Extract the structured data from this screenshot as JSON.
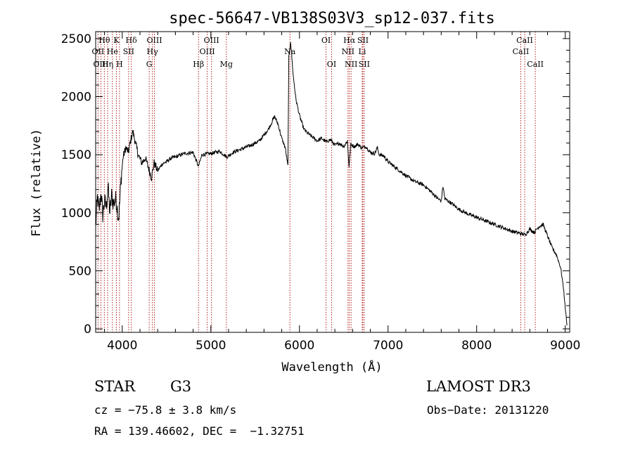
{
  "chart_data": {
    "type": "line",
    "title": "spec-56647-VB138S03V3_sp12-037.fits",
    "xlabel": "Wavelength (Å)",
    "ylabel": "Flux (relative)",
    "xlim": [
      3700,
      9050
    ],
    "ylim": [
      -30,
      2560
    ],
    "x_ticks": [
      4000,
      5000,
      6000,
      7000,
      8000,
      9000
    ],
    "y_ticks": [
      0,
      500,
      1000,
      1500,
      2000,
      2500
    ],
    "grid": false,
    "spectrum_anchors": [
      [
        3700,
        880
      ],
      [
        3720,
        1130
      ],
      [
        3740,
        1010
      ],
      [
        3760,
        1180
      ],
      [
        3780,
        980
      ],
      [
        3800,
        1100
      ],
      [
        3820,
        1050
      ],
      [
        3840,
        1230
      ],
      [
        3860,
        1000
      ],
      [
        3880,
        1150
      ],
      [
        3900,
        1080
      ],
      [
        3930,
        1120
      ],
      [
        3960,
        950
      ],
      [
        3990,
        1320
      ],
      [
        4010,
        1480
      ],
      [
        4040,
        1560
      ],
      [
        4070,
        1520
      ],
      [
        4100,
        1640
      ],
      [
        4120,
        1700
      ],
      [
        4150,
        1600
      ],
      [
        4180,
        1500
      ],
      [
        4220,
        1430
      ],
      [
        4260,
        1470
      ],
      [
        4300,
        1380
      ],
      [
        4330,
        1300
      ],
      [
        4360,
        1430
      ],
      [
        4400,
        1360
      ],
      [
        4450,
        1420
      ],
      [
        4500,
        1440
      ],
      [
        4550,
        1470
      ],
      [
        4600,
        1480
      ],
      [
        4700,
        1510
      ],
      [
        4800,
        1520
      ],
      [
        4860,
        1400
      ],
      [
        4900,
        1500
      ],
      [
        5000,
        1510
      ],
      [
        5100,
        1530
      ],
      [
        5180,
        1480
      ],
      [
        5250,
        1520
      ],
      [
        5350,
        1550
      ],
      [
        5450,
        1580
      ],
      [
        5550,
        1620
      ],
      [
        5650,
        1720
      ],
      [
        5720,
        1830
      ],
      [
        5760,
        1760
      ],
      [
        5800,
        1640
      ],
      [
        5840,
        1560
      ],
      [
        5870,
        1400
      ],
      [
        5880,
        2330
      ],
      [
        5900,
        2480
      ],
      [
        5930,
        2180
      ],
      [
        5960,
        1980
      ],
      [
        6000,
        1840
      ],
      [
        6050,
        1720
      ],
      [
        6100,
        1680
      ],
      [
        6150,
        1650
      ],
      [
        6200,
        1620
      ],
      [
        6250,
        1640
      ],
      [
        6300,
        1610
      ],
      [
        6350,
        1630
      ],
      [
        6400,
        1580
      ],
      [
        6450,
        1600
      ],
      [
        6500,
        1570
      ],
      [
        6540,
        1620
      ],
      [
        6560,
        1400
      ],
      [
        6580,
        1590
      ],
      [
        6620,
        1570
      ],
      [
        6660,
        1590
      ],
      [
        6700,
        1560
      ],
      [
        6750,
        1570
      ],
      [
        6800,
        1520
      ],
      [
        6850,
        1510
      ],
      [
        6880,
        1560
      ],
      [
        6900,
        1500
      ],
      [
        6950,
        1490
      ],
      [
        7000,
        1440
      ],
      [
        7100,
        1380
      ],
      [
        7200,
        1320
      ],
      [
        7300,
        1270
      ],
      [
        7400,
        1240
      ],
      [
        7500,
        1170
      ],
      [
        7550,
        1130
      ],
      [
        7600,
        1100
      ],
      [
        7620,
        1230
      ],
      [
        7640,
        1120
      ],
      [
        7700,
        1090
      ],
      [
        7800,
        1030
      ],
      [
        7900,
        990
      ],
      [
        8000,
        960
      ],
      [
        8100,
        930
      ],
      [
        8200,
        900
      ],
      [
        8300,
        870
      ],
      [
        8400,
        840
      ],
      [
        8500,
        820
      ],
      [
        8550,
        810
      ],
      [
        8600,
        860
      ],
      [
        8650,
        830
      ],
      [
        8700,
        880
      ],
      [
        8750,
        900
      ],
      [
        8800,
        800
      ],
      [
        8850,
        700
      ],
      [
        8900,
        640
      ],
      [
        8950,
        520
      ],
      [
        8980,
        350
      ],
      [
        9000,
        180
      ],
      [
        9020,
        30
      ]
    ],
    "lines": [
      {
        "label": "Hθ",
        "wavelength": 3798,
        "row": 1
      },
      {
        "label": "OII",
        "wavelength": 3727,
        "row": 2
      },
      {
        "label": "OIII",
        "wavelength": 3760,
        "row": 3
      },
      {
        "label": "He",
        "wavelength": 3889,
        "row": 2
      },
      {
        "label": "Hη",
        "wavelength": 3835,
        "row": 3
      },
      {
        "label": "K",
        "wavelength": 3934,
        "row": 1
      },
      {
        "label": "H",
        "wavelength": 3969,
        "row": 3
      },
      {
        "label": "SII",
        "wavelength": 4072,
        "row": 2
      },
      {
        "label": "Hδ",
        "wavelength": 4102,
        "row": 1
      },
      {
        "label": "OIII",
        "wavelength": 4363,
        "row": 1
      },
      {
        "label": "Hγ",
        "wavelength": 4340,
        "row": 2
      },
      {
        "label": "G",
        "wavelength": 4304,
        "row": 3
      },
      {
        "label": "Hβ",
        "wavelength": 4861,
        "row": 3
      },
      {
        "label": "OIII",
        "wavelength": 5007,
        "row": 1
      },
      {
        "label": "OIII",
        "wavelength": 4959,
        "row": 2
      },
      {
        "label": "Mg",
        "wavelength": 5175,
        "row": 3
      },
      {
        "label": "Na",
        "wavelength": 5893,
        "row": 2
      },
      {
        "label": "OI",
        "wavelength": 6300,
        "row": 1
      },
      {
        "label": "OI",
        "wavelength": 6363,
        "row": 3
      },
      {
        "label": "Hα",
        "wavelength": 6563,
        "row": 1
      },
      {
        "label": "NII",
        "wavelength": 6548,
        "row": 2
      },
      {
        "label": "NII",
        "wavelength": 6583,
        "row": 3
      },
      {
        "label": "SII",
        "wavelength": 6716,
        "row": 1
      },
      {
        "label": "Li",
        "wavelength": 6708,
        "row": 2
      },
      {
        "label": "SII",
        "wavelength": 6731,
        "row": 3
      },
      {
        "label": "CaII",
        "wavelength": 8542,
        "row": 1
      },
      {
        "label": "CaII",
        "wavelength": 8498,
        "row": 2
      },
      {
        "label": "CaII",
        "wavelength": 8662,
        "row": 3
      }
    ]
  },
  "info": {
    "object_class": "STAR",
    "subclass": "G3",
    "survey": "LAMOST DR3",
    "cz": "cz = −75.8 ± 3.8 km/s",
    "obs_date": "Obs−Date: 20131220",
    "coords": "RA = 139.46602, DEC =  −1.32751"
  }
}
